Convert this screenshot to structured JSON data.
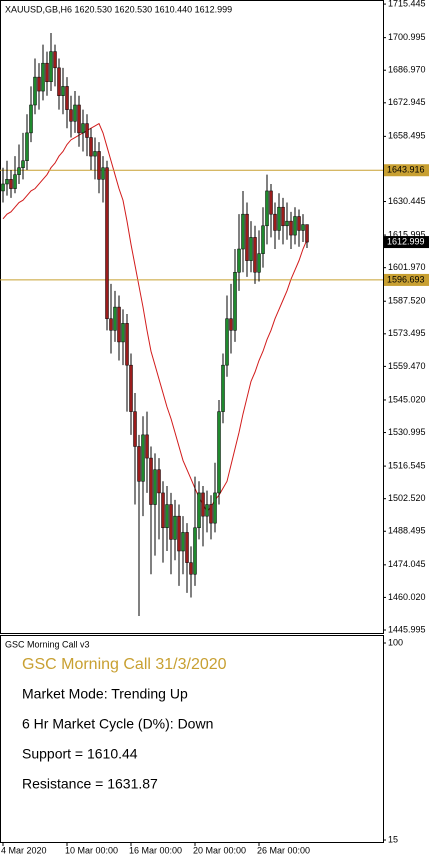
{
  "chart_data": {
    "type": "candlestick",
    "title": "XAUUSD,GB,H6  1620.530 1620.530 1610.440 1612.999",
    "categories": [
      "4 Mar 2020",
      null,
      null,
      null,
      null,
      null,
      null,
      null,
      null,
      null,
      null,
      null,
      null,
      null,
      null,
      null,
      "10 Mar 00:00",
      null,
      null,
      null,
      null,
      null,
      null,
      null,
      null,
      null,
      null,
      null,
      null,
      null,
      null,
      null,
      "16 Mar 00:00",
      null,
      null,
      null,
      null,
      null,
      null,
      null,
      null,
      null,
      null,
      null,
      null,
      null,
      null,
      null,
      "20 Mar 00:00",
      null,
      null,
      null,
      null,
      null,
      null,
      null,
      null,
      null,
      null,
      null,
      null,
      null,
      null,
      null,
      "26 Mar 00:00",
      null,
      null,
      null,
      null,
      null,
      null,
      null,
      null,
      null,
      null,
      null,
      null
    ],
    "open": [
      1635,
      1638,
      1640,
      1636,
      1642,
      1645,
      1648,
      1660,
      1672,
      1684,
      1678,
      1690,
      1682,
      1695,
      1688,
      1676,
      1680,
      1670,
      1665,
      1672,
      1660,
      1664,
      1658,
      1650,
      1652,
      1640,
      1645,
      1580,
      1575,
      1585,
      1570,
      1578,
      1560,
      1540,
      1525,
      1510,
      1530,
      1520,
      1500,
      1515,
      1505,
      1490,
      1500,
      1485,
      1495,
      1480,
      1488,
      1475,
      1470,
      1490,
      1505,
      1495,
      1500,
      1492,
      1505,
      1540,
      1560,
      1580,
      1575,
      1600,
      1610,
      1625,
      1605,
      1615,
      1600,
      1608,
      1620,
      1635,
      1625,
      1618,
      1628,
      1620,
      1622,
      1616,
      1624,
      1618,
      1620.53
    ],
    "high": [
      1645,
      1648,
      1644,
      1650,
      1655,
      1660,
      1668,
      1680,
      1692,
      1690,
      1698,
      1695,
      1703,
      1698,
      1692,
      1688,
      1684,
      1676,
      1678,
      1676,
      1670,
      1668,
      1662,
      1658,
      1656,
      1650,
      1648,
      1595,
      1592,
      1590,
      1584,
      1582,
      1565,
      1548,
      1530,
      1538,
      1540,
      1525,
      1522,
      1520,
      1510,
      1508,
      1505,
      1502,
      1500,
      1495,
      1492,
      1482,
      1512,
      1510,
      1508,
      1506,
      1504,
      1518,
      1545,
      1565,
      1590,
      1595,
      1610,
      1625,
      1635,
      1630,
      1622,
      1620,
      1618,
      1628,
      1642,
      1638,
      1630,
      1634,
      1632,
      1630,
      1626,
      1628,
      1627,
      1625,
      1620.53
    ],
    "low": [
      1630,
      1633,
      1632,
      1634,
      1638,
      1640,
      1644,
      1656,
      1668,
      1670,
      1674,
      1676,
      1678,
      1680,
      1670,
      1668,
      1662,
      1658,
      1660,
      1654,
      1652,
      1650,
      1644,
      1640,
      1634,
      1630,
      1575,
      1565,
      1570,
      1562,
      1560,
      1540,
      1530,
      1500,
      1452,
      1495,
      1505,
      1470,
      1478,
      1485,
      1475,
      1480,
      1470,
      1476,
      1465,
      1470,
      1462,
      1460,
      1465,
      1485,
      1482,
      1488,
      1485,
      1488,
      1500,
      1535,
      1555,
      1565,
      1570,
      1592,
      1600,
      1598,
      1600,
      1595,
      1596,
      1602,
      1612,
      1615,
      1610,
      1614,
      1612,
      1614,
      1610,
      1612,
      1611,
      1613,
      1610.44
    ],
    "close": [
      1638,
      1640,
      1636,
      1642,
      1645,
      1648,
      1660,
      1672,
      1684,
      1678,
      1690,
      1682,
      1695,
      1688,
      1676,
      1680,
      1670,
      1665,
      1672,
      1660,
      1664,
      1658,
      1650,
      1652,
      1640,
      1645,
      1580,
      1575,
      1585,
      1570,
      1578,
      1560,
      1540,
      1525,
      1510,
      1530,
      1520,
      1500,
      1515,
      1505,
      1490,
      1500,
      1485,
      1495,
      1480,
      1488,
      1475,
      1470,
      1490,
      1505,
      1495,
      1500,
      1492,
      1505,
      1540,
      1560,
      1580,
      1575,
      1600,
      1610,
      1625,
      1605,
      1615,
      1600,
      1608,
      1620,
      1635,
      1625,
      1618,
      1628,
      1620,
      1622,
      1616,
      1624,
      1618,
      1620.53,
      1612.999
    ],
    "up_color": "#1f8a2e",
    "down_color": "#9b1c1c",
    "moving_average": {
      "color": "#d21c1c",
      "values": [
        1623,
        1625,
        1626,
        1628,
        1630,
        1631,
        1633,
        1635,
        1636,
        1638,
        1640,
        1642,
        1645,
        1647,
        1650,
        1652,
        1655,
        1657,
        1658,
        1659,
        1660,
        1661,
        1662,
        1663,
        1664,
        1660,
        1654,
        1648,
        1642,
        1636,
        1631,
        1622,
        1612,
        1603,
        1594,
        1585,
        1575,
        1566,
        1560,
        1554,
        1548,
        1542,
        1537,
        1531,
        1525,
        1519,
        1515,
        1511,
        1507,
        1503,
        1500,
        1497,
        1499,
        1502,
        1504,
        1507,
        1510,
        1517,
        1524,
        1531,
        1539,
        1546,
        1553,
        1557,
        1562,
        1566,
        1571,
        1575,
        1580,
        1584,
        1588,
        1592,
        1597,
        1601,
        1605,
        1610,
        1614
      ]
    },
    "levels": [
      1643.916,
      1596.693
    ],
    "level_color": "#c8a032",
    "ylim": [
      1444.7,
      1717.2
    ],
    "yticks": [
      1715.445,
      1700.995,
      {
        "value": 1686.97,
        "label": "1686.970"
      },
      1672.945,
      1658.495,
      1630.445,
      1615.995,
      {
        "value": 1601.97,
        "label": "1601.970"
      },
      {
        "value": 1587.52,
        "label": "1587.520"
      },
      1573.495,
      {
        "value": 1559.47,
        "label": "1559.470"
      },
      {
        "value": 1545.02,
        "label": "1545.020"
      },
      1530.995,
      1516.545,
      {
        "value": 1502.52,
        "label": "1502.520"
      },
      1488.495,
      1474.045,
      {
        "value": 1460.02,
        "label": "1460.020"
      },
      1445.995
    ],
    "indicator": {
      "title": "GSC Morning Call v3",
      "ylim": [
        15,
        100
      ],
      "yticks": [
        100,
        15
      ],
      "heading": "GSC Morning Call 31/3/2020",
      "lines": [
        "Market Mode: Trending Up",
        "6 Hr Market Cycle (D%): Down",
        "Support = 1610.44",
        "Resistance = 1631.87"
      ]
    }
  }
}
